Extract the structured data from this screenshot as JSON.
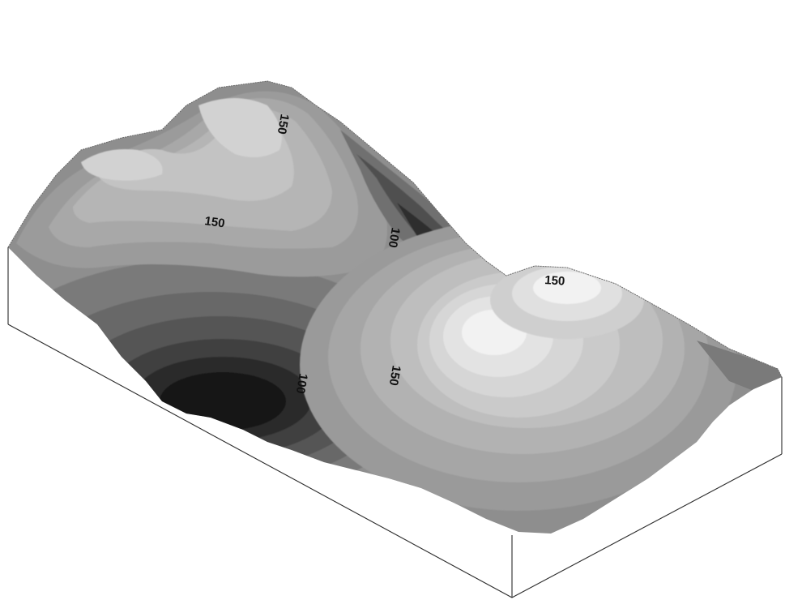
{
  "contour_labels": [
    "150",
    "150",
    "100",
    "150",
    "150",
    "100"
  ],
  "colors": {
    "background": "#ffffff",
    "box_edge": "#2a2a2a",
    "band_lightest": "#f2f2f2",
    "band_darkest": "#141414"
  }
}
